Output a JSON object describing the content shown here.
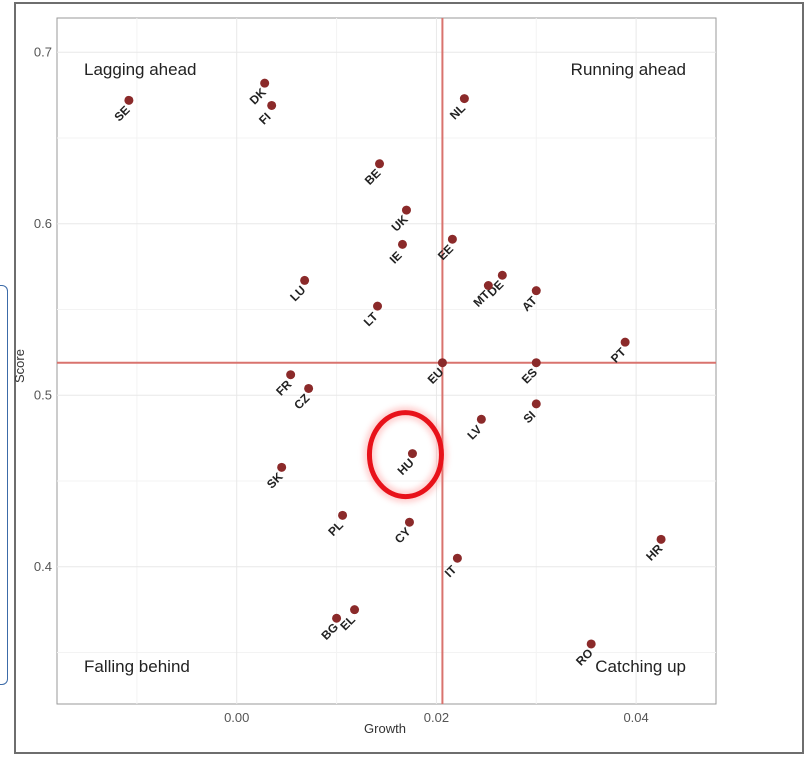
{
  "chart_data": {
    "type": "scatter",
    "title": "",
    "xlabel": "Growth",
    "ylabel": "Score",
    "xlim": [
      -0.018,
      0.048
    ],
    "ylim": [
      0.32,
      0.72
    ],
    "x_ticks": [
      0.0,
      0.02,
      0.04
    ],
    "x_tick_labels": [
      "0.00",
      "0.02",
      "0.04"
    ],
    "y_ticks": [
      0.4,
      0.5,
      0.6,
      0.7
    ],
    "y_tick_labels": [
      "0.4",
      "0.5",
      "0.6",
      "0.7"
    ],
    "grid": true,
    "reference_lines": {
      "x": 0.0206,
      "y": 0.519
    },
    "quadrant_labels": {
      "top_left": "Lagging ahead",
      "top_right": "Running ahead",
      "bottom_left": "Falling behind",
      "bottom_right": "Catching up"
    },
    "highlighted": "HU",
    "colors": {
      "point": "#8b2a2a",
      "reference_line": "#d9736e",
      "highlight": "#e8121a"
    },
    "points": [
      {
        "label": "SE",
        "x": -0.0108,
        "y": 0.672
      },
      {
        "label": "DK",
        "x": 0.0028,
        "y": 0.682
      },
      {
        "label": "FI",
        "x": 0.0035,
        "y": 0.669
      },
      {
        "label": "NL",
        "x": 0.0228,
        "y": 0.673
      },
      {
        "label": "BE",
        "x": 0.0143,
        "y": 0.635
      },
      {
        "label": "UK",
        "x": 0.017,
        "y": 0.608
      },
      {
        "label": "IE",
        "x": 0.0166,
        "y": 0.588
      },
      {
        "label": "EE",
        "x": 0.0216,
        "y": 0.591
      },
      {
        "label": "DE",
        "x": 0.0266,
        "y": 0.57
      },
      {
        "label": "MT",
        "x": 0.0252,
        "y": 0.564
      },
      {
        "label": "AT",
        "x": 0.03,
        "y": 0.561
      },
      {
        "label": "LU",
        "x": 0.0068,
        "y": 0.567
      },
      {
        "label": "LT",
        "x": 0.0141,
        "y": 0.552
      },
      {
        "label": "PT",
        "x": 0.0389,
        "y": 0.531
      },
      {
        "label": "EU",
        "x": 0.0206,
        "y": 0.519
      },
      {
        "label": "ES",
        "x": 0.03,
        "y": 0.519
      },
      {
        "label": "FR",
        "x": 0.0054,
        "y": 0.512
      },
      {
        "label": "CZ",
        "x": 0.0072,
        "y": 0.504
      },
      {
        "label": "SI",
        "x": 0.03,
        "y": 0.495
      },
      {
        "label": "LV",
        "x": 0.0245,
        "y": 0.486
      },
      {
        "label": "HU",
        "x": 0.0176,
        "y": 0.466
      },
      {
        "label": "SK",
        "x": 0.0045,
        "y": 0.458
      },
      {
        "label": "PL",
        "x": 0.0106,
        "y": 0.43
      },
      {
        "label": "CY",
        "x": 0.0173,
        "y": 0.426
      },
      {
        "label": "HR",
        "x": 0.0425,
        "y": 0.416
      },
      {
        "label": "IT",
        "x": 0.0221,
        "y": 0.405
      },
      {
        "label": "EL",
        "x": 0.0118,
        "y": 0.375
      },
      {
        "label": "BG",
        "x": 0.01,
        "y": 0.37
      },
      {
        "label": "RO",
        "x": 0.0355,
        "y": 0.355
      }
    ]
  }
}
